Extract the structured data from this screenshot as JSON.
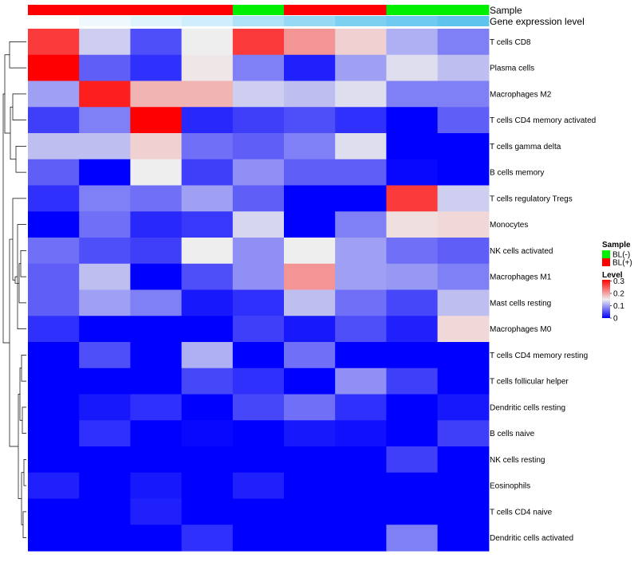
{
  "chart_data": {
    "type": "heatmap",
    "title": "",
    "row_annotation_note": "rows are cell types, columns are samples",
    "annotations": [
      {
        "name": "Sample",
        "values": [
          "BL(+)",
          "BL(+)",
          "BL(+)",
          "BL(+)",
          "BL(-)",
          "BL(+)",
          "BL(+)",
          "BL(-)",
          "BL(-)"
        ]
      },
      {
        "name": "Gene expression level",
        "values": [
          0.0,
          0.1,
          0.2,
          0.3,
          0.5,
          0.65,
          0.8,
          0.9,
          1.0
        ]
      }
    ],
    "rows": [
      "T cells CD8",
      "Plasma cells",
      "Macrophages M2",
      "T cells CD4 memory activated",
      "T cells gamma delta",
      "B cells memory",
      "T cells regulatory  Tregs",
      "Monocytes",
      "NK cells activated",
      "Macrophages M1",
      "Mast cells resting",
      "Macrophages M0",
      "T cells CD4 memory resting",
      "T cells follicular helper",
      "Dendritic cells resting",
      "B cells naive",
      "NK cells resting",
      "Eosinophils",
      "T cells CD4 naive",
      "Dendritic cells activated"
    ],
    "values": [
      [
        0.27,
        0.13,
        0.05,
        0.15,
        0.27,
        0.21,
        0.17,
        0.11,
        0.08
      ],
      [
        0.31,
        0.06,
        0.03,
        0.155,
        0.08,
        0.02,
        0.1,
        0.14,
        0.12
      ],
      [
        0.1,
        0.29,
        0.19,
        0.19,
        0.13,
        0.12,
        0.14,
        0.08,
        0.08
      ],
      [
        0.04,
        0.08,
        0.31,
        0.025,
        0.04,
        0.05,
        0.03,
        0.0,
        0.06
      ],
      [
        0.12,
        0.12,
        0.17,
        0.07,
        0.06,
        0.08,
        0.14,
        0.0,
        0.0
      ],
      [
        0.06,
        0.0,
        0.15,
        0.04,
        0.09,
        0.06,
        0.06,
        0.005,
        0.0
      ],
      [
        0.03,
        0.08,
        0.07,
        0.1,
        0.06,
        0.0,
        0.0,
        0.27,
        0.13
      ],
      [
        0.0,
        0.07,
        0.025,
        0.035,
        0.135,
        0.0,
        0.08,
        0.16,
        0.165
      ],
      [
        0.07,
        0.05,
        0.04,
        0.15,
        0.09,
        0.15,
        0.1,
        0.07,
        0.06
      ],
      [
        0.06,
        0.12,
        0.0,
        0.05,
        0.09,
        0.21,
        0.1,
        0.095,
        0.08
      ],
      [
        0.06,
        0.1,
        0.08,
        0.015,
        0.03,
        0.12,
        0.07,
        0.045,
        0.12
      ],
      [
        0.03,
        0.0,
        0.0,
        0.0,
        0.04,
        0.015,
        0.05,
        0.02,
        0.165
      ],
      [
        0.0,
        0.05,
        0.0,
        0.11,
        0.0,
        0.07,
        0.0,
        0.0,
        0.0
      ],
      [
        0.0,
        0.0,
        0.0,
        0.045,
        0.03,
        0.0,
        0.09,
        0.04,
        0.0
      ],
      [
        0.0,
        0.015,
        0.03,
        0.0,
        0.045,
        0.07,
        0.03,
        0.0,
        0.015
      ],
      [
        0.0,
        0.03,
        0.0,
        0.005,
        0.0,
        0.015,
        0.01,
        0.0,
        0.04
      ],
      [
        0.0,
        0.0,
        0.0,
        0.0,
        0.0,
        0.0,
        0.0,
        0.04,
        0.0
      ],
      [
        0.02,
        0.0,
        0.015,
        0.0,
        0.02,
        0.0,
        0.0,
        0.0,
        0.0
      ],
      [
        0.0,
        0.0,
        0.02,
        0.0,
        0.0,
        0.0,
        0.0,
        0.0,
        0.0
      ],
      [
        0.0,
        0.0,
        0.0,
        0.03,
        0.0,
        0.0,
        0.0,
        0.08,
        0.0
      ]
    ],
    "color_scale": {
      "low": "#0000ff",
      "mid": "#eeeeee",
      "high": "#ff0000",
      "min": 0,
      "mid_value": 0.15,
      "max": 0.31
    },
    "legend": {
      "sample": {
        "title": "Sample",
        "items": [
          {
            "label": "BL(-)",
            "color": "#00ee00"
          },
          {
            "label": "BL(+)",
            "color": "#ff0000"
          }
        ]
      },
      "level": {
        "title": "Level",
        "ticks": [
          0.3,
          0.2,
          0.1,
          0
        ],
        "tick_labels": [
          "0.3",
          "0.2",
          "0.1",
          "0"
        ]
      }
    },
    "annotation_colors": {
      "sample": {
        "BL(-)": "#00ee00",
        "BL(+)": "#ff0000"
      },
      "gene_low": "#ffffff",
      "gene_high": "#5ec4ee"
    },
    "row_dendrogram": true,
    "column_dendrogram": false
  }
}
